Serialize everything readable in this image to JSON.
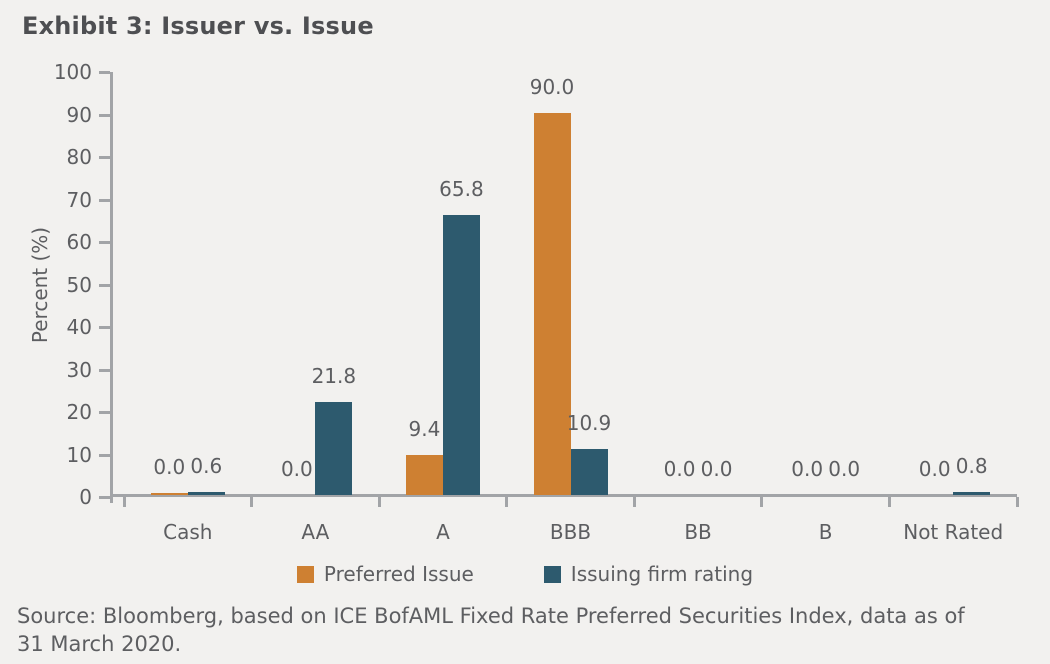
{
  "title": "Exhibit 3: Issuer vs. Issue",
  "chart_data": {
    "type": "bar",
    "categories": [
      "Cash",
      "AA",
      "A",
      "BBB",
      "BB",
      "B",
      "Not Rated"
    ],
    "series": [
      {
        "name": "Preferred Issue",
        "color": "#ce8032",
        "values": [
          0.0,
          0.0,
          9.4,
          90.0,
          0.0,
          0.0,
          0.0
        ]
      },
      {
        "name": "Issuing firm rating",
        "color": "#2d5a6e",
        "values": [
          0.6,
          21.8,
          65.8,
          10.9,
          0.0,
          0.0,
          0.8
        ]
      }
    ],
    "title": "Exhibit 3: Issuer vs. Issue",
    "xlabel": "",
    "ylabel": "Percent (%)",
    "ylim": [
      0,
      100
    ],
    "yticks": [
      0,
      10,
      20,
      30,
      40,
      50,
      60,
      70,
      80,
      90,
      100
    ],
    "grid": false,
    "legend_position": "bottom",
    "data_labels_decimals": 1,
    "sliver_bars": [
      {
        "series": 0,
        "category": 0,
        "px": 2
      }
    ]
  },
  "legend": {
    "items": [
      {
        "label": "Preferred Issue",
        "color": "#ce8032"
      },
      {
        "label": "Issuing firm rating",
        "color": "#2d5a6e"
      }
    ]
  },
  "source": {
    "line1": "Source: Bloomberg, based on ICE BofAML Fixed Rate Preferred Securities Index, data as of",
    "line2": "31 March 2020."
  },
  "colors": {
    "background": "#f2f1ef",
    "orange": "#ce8032",
    "teal": "#2d5a6e",
    "axis_line": "#a2a4a7",
    "text": "#5d5e61",
    "title_text": "#4e4f52"
  }
}
